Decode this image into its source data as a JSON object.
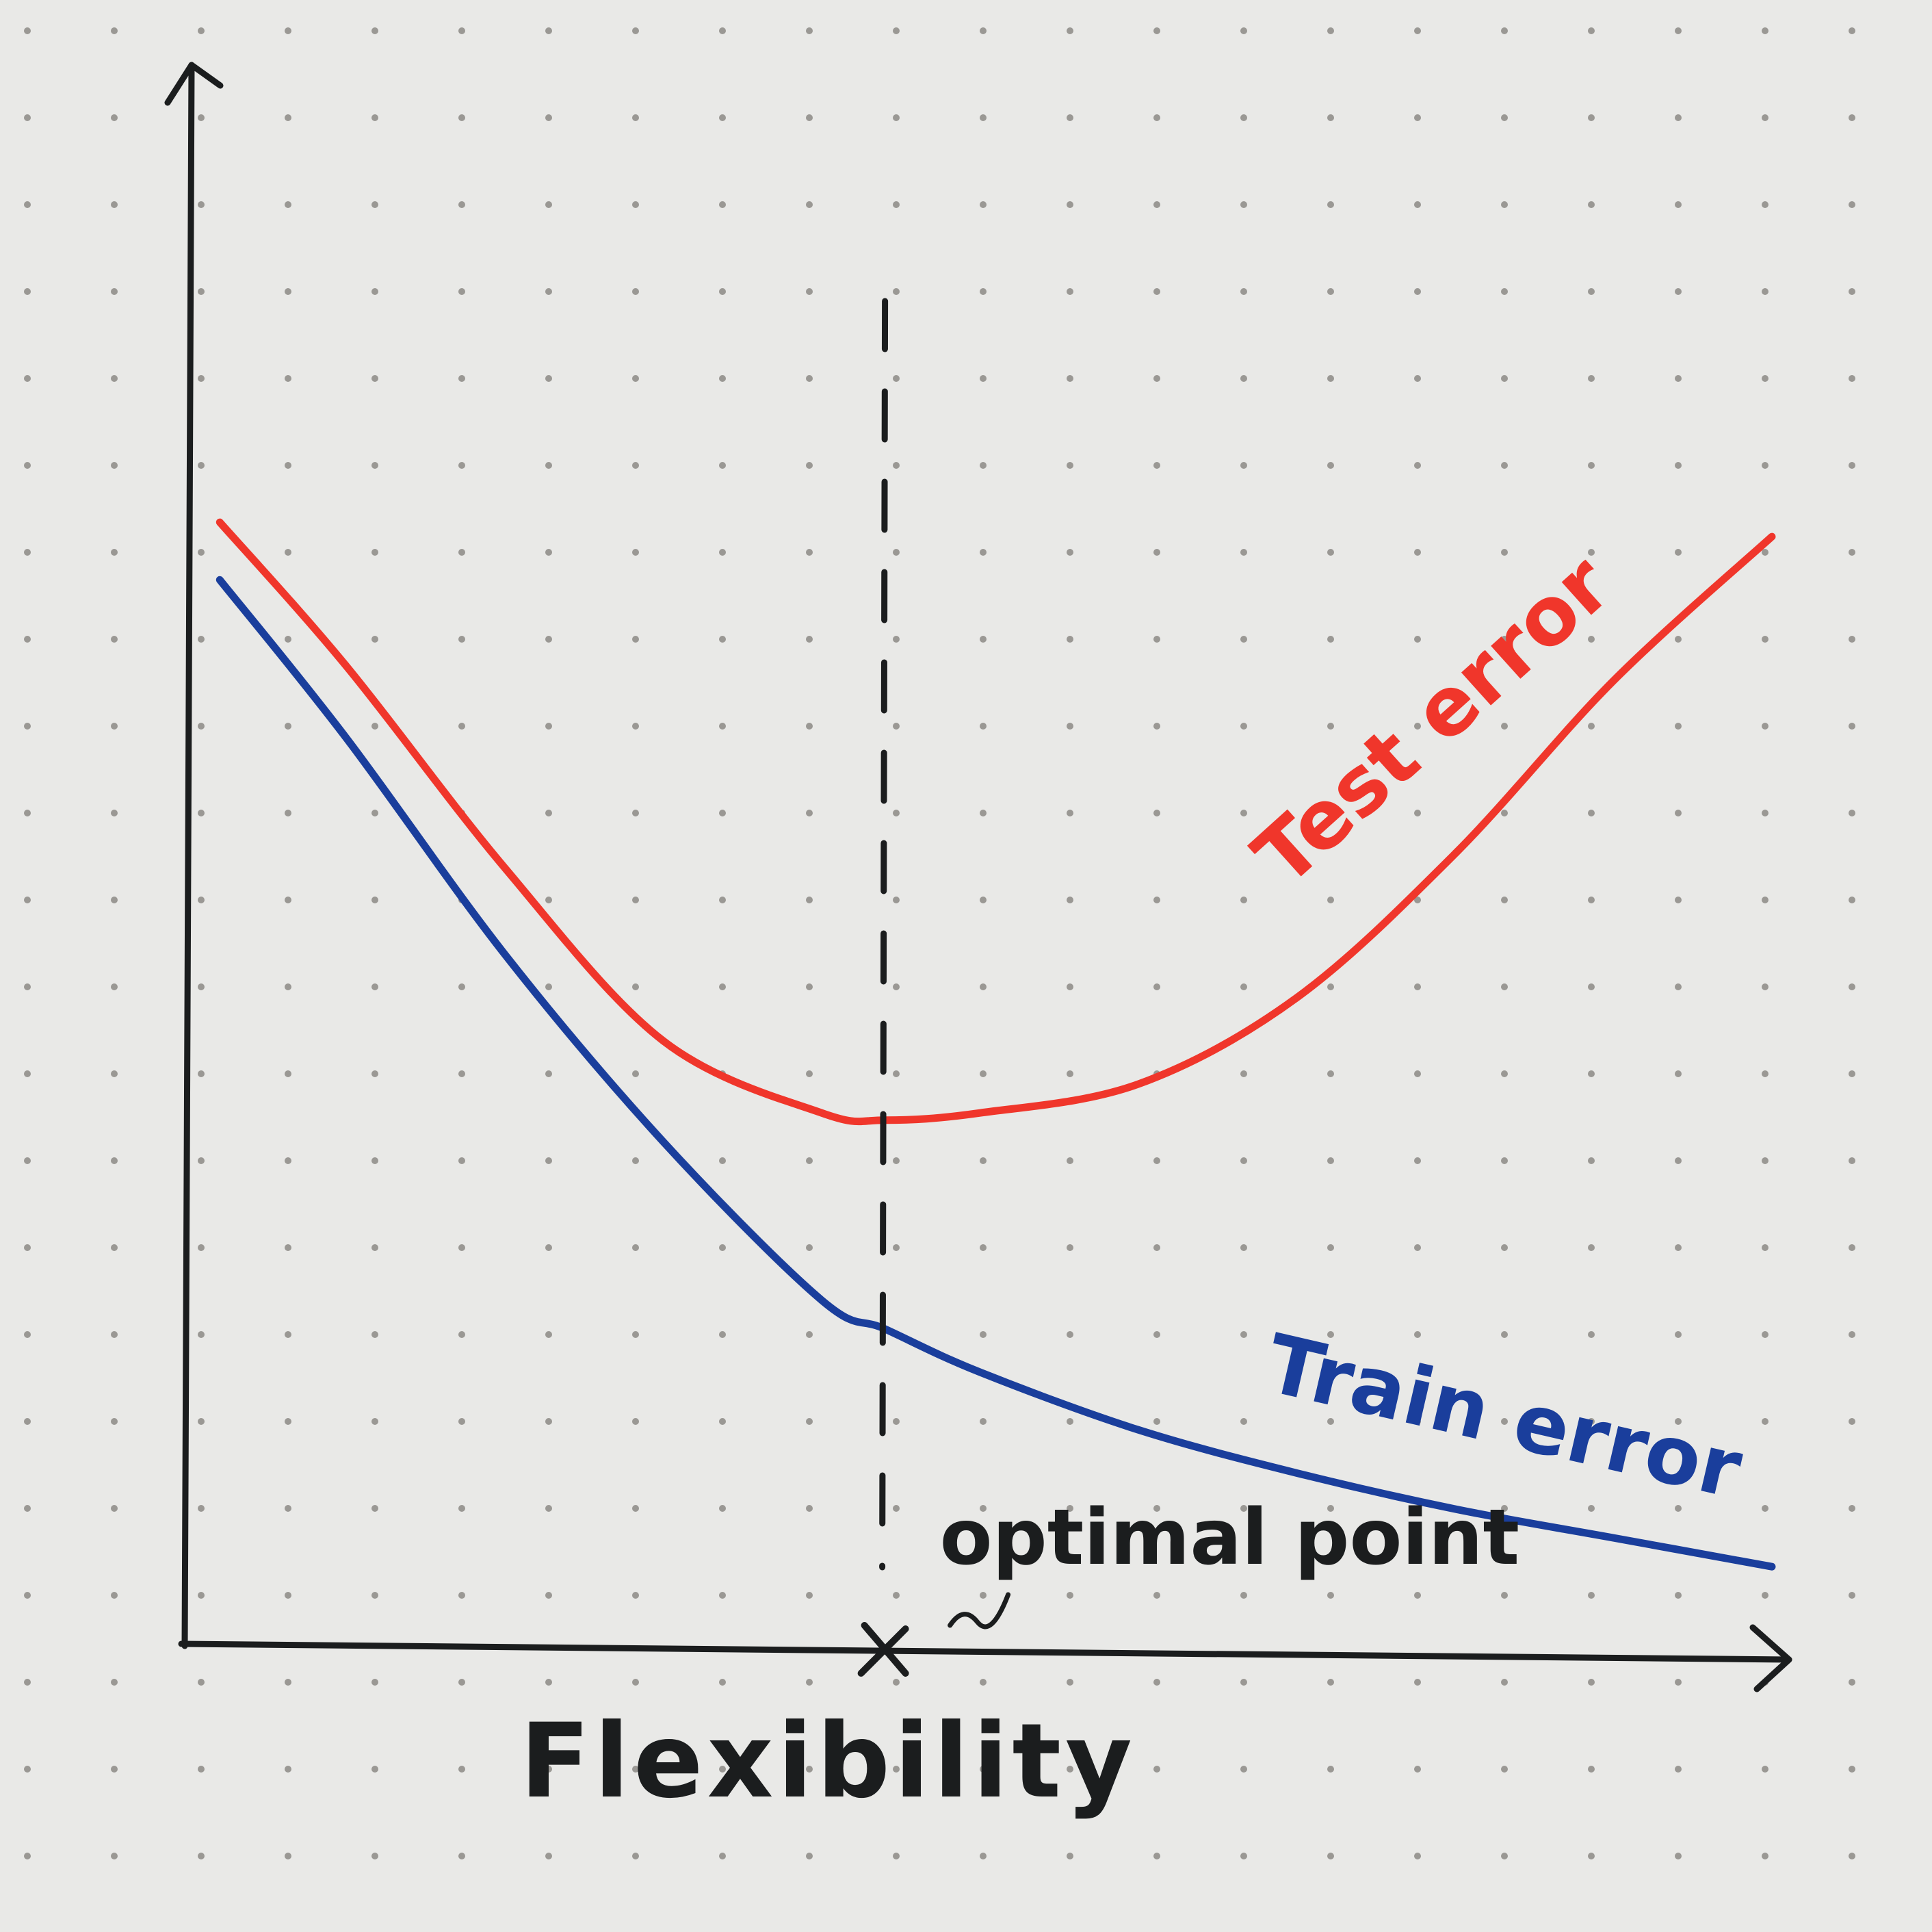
{
  "chart_data": {
    "type": "line",
    "title": "",
    "xlabel": "Flexibility",
    "ylabel": "",
    "xlim": [
      0,
      10
    ],
    "ylim": [
      0,
      10
    ],
    "grid": false,
    "axis_ticks": false,
    "series": [
      {
        "name": "Test error",
        "color": "#f0362b",
        "x": [
          0.2,
          1.0,
          2.0,
          3.0,
          4.0,
          4.4,
          5.0,
          6.0,
          7.0,
          8.0,
          9.0,
          10.0
        ],
        "y": [
          7.8,
          6.8,
          5.4,
          4.2,
          3.7,
          3.65,
          3.7,
          3.9,
          4.5,
          5.5,
          6.7,
          7.7
        ]
      },
      {
        "name": "Train error",
        "color": "#1a3e9c",
        "x": [
          0.2,
          1.0,
          2.0,
          3.0,
          4.0,
          4.4,
          5.0,
          6.0,
          7.0,
          8.0,
          9.0,
          10.0
        ],
        "y": [
          7.4,
          6.3,
          4.8,
          3.5,
          2.4,
          2.2,
          1.9,
          1.5,
          1.2,
          0.95,
          0.75,
          0.55
        ]
      }
    ],
    "annotations": [
      {
        "id": "optimal",
        "text": "optimal point",
        "x": 4.4,
        "style": "dashed vertical line with x mark on the x-axis"
      }
    ]
  },
  "colors": {
    "paper": "#e9e9e7",
    "dot": "#9a9894",
    "ink": "#1b1d1e"
  }
}
